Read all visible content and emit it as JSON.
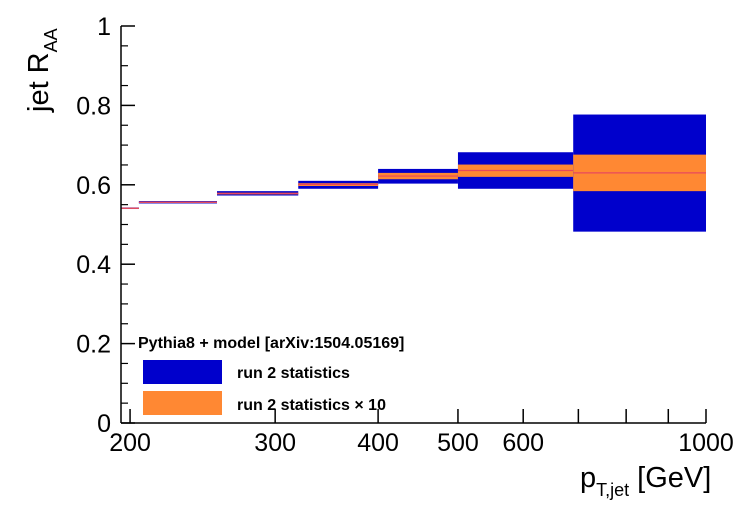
{
  "chart_data": {
    "type": "bar",
    "xscale": "log",
    "xlim": [
      195,
      1000
    ],
    "ylim": [
      0,
      1
    ],
    "xlabel_main": "p",
    "xlabel_sub": "T,jet",
    "xlabel_unit": "[GeV]",
    "ylabel_main": "jet R",
    "ylabel_sub": "AA",
    "x_tick_labels": [
      {
        "value": 200,
        "label": "200"
      },
      {
        "value": 300,
        "label": "300"
      },
      {
        "value": 400,
        "label": "400"
      },
      {
        "value": 500,
        "label": "500"
      },
      {
        "value": 600,
        "label": "600"
      },
      {
        "value": 1000,
        "label": "1000"
      }
    ],
    "x_minor_ticks": [
      200,
      300,
      400,
      500,
      600,
      700,
      800,
      900,
      1000
    ],
    "y_tick_labels": [
      {
        "value": 0,
        "label": "0"
      },
      {
        "value": 0.2,
        "label": "0.2"
      },
      {
        "value": 0.4,
        "label": "0.4"
      },
      {
        "value": 0.6,
        "label": "0.6"
      },
      {
        "value": 0.8,
        "label": "0.8"
      },
      {
        "value": 1,
        "label": "1"
      }
    ],
    "bins": [
      {
        "xlow": 195,
        "xhigh": 205,
        "central": 0.541,
        "run2_low": 0.539,
        "run2_high": 0.543,
        "run2x10_low": 0.54,
        "run2x10_high": 0.542
      },
      {
        "xlow": 205,
        "xhigh": 255,
        "central": 0.556,
        "run2_low": 0.553,
        "run2_high": 0.559,
        "run2x10_low": 0.555,
        "run2x10_high": 0.557
      },
      {
        "xlow": 255,
        "xhigh": 320,
        "central": 0.578,
        "run2_low": 0.573,
        "run2_high": 0.584,
        "run2x10_low": 0.576,
        "run2x10_high": 0.58
      },
      {
        "xlow": 320,
        "xhigh": 400,
        "central": 0.601,
        "run2_low": 0.59,
        "run2_high": 0.61,
        "run2x10_low": 0.597,
        "run2x10_high": 0.604
      },
      {
        "xlow": 400,
        "xhigh": 500,
        "central": 0.622,
        "run2_low": 0.603,
        "run2_high": 0.64,
        "run2x10_low": 0.614,
        "run2x10_high": 0.63
      },
      {
        "xlow": 500,
        "xhigh": 690,
        "central": 0.636,
        "run2_low": 0.59,
        "run2_high": 0.682,
        "run2x10_low": 0.62,
        "run2x10_high": 0.651
      },
      {
        "xlow": 690,
        "xhigh": 1000,
        "central": 0.63,
        "run2_low": 0.482,
        "run2_high": 0.777,
        "run2x10_low": 0.584,
        "run2x10_high": 0.676
      }
    ],
    "legend": {
      "title": "Pythia8 + model [arXiv:1504.05169]",
      "entries": [
        {
          "label": "run 2 statistics",
          "color": "#0000cc"
        },
        {
          "label": "run 2 statistics × 10",
          "color": "#ff8833"
        }
      ],
      "placement": "bottom-left"
    },
    "colors": {
      "run2": "#0000cc",
      "run2x10": "#ff8833",
      "central": "#e8485c"
    }
  }
}
